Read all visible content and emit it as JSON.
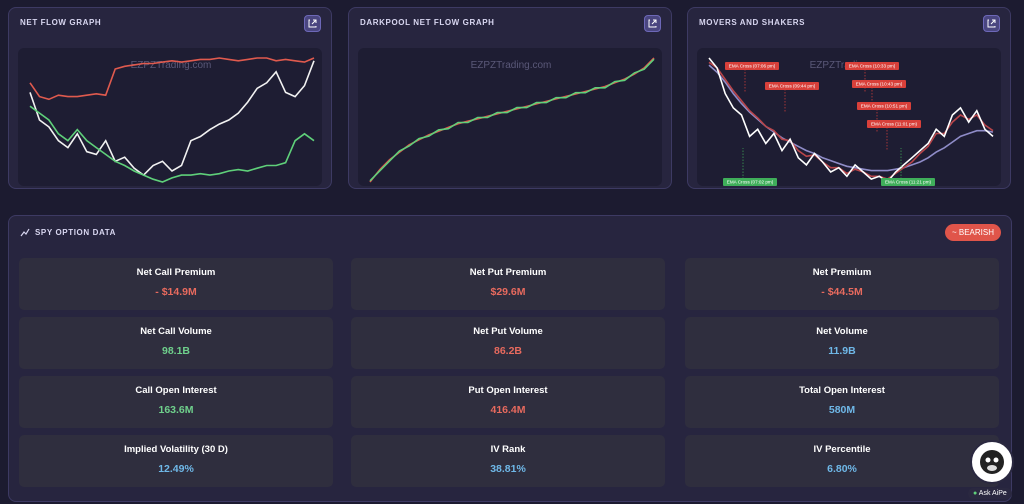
{
  "panels": [
    {
      "title": "NET FLOW GRAPH",
      "watermark": "EZPZTrading.com",
      "series": [
        {
          "color": "#e05a4e",
          "values": [
            72,
            62,
            60,
            63,
            62,
            62,
            63,
            64,
            63,
            82,
            84,
            85,
            86,
            86,
            87,
            88,
            87,
            88,
            89,
            89,
            90,
            89,
            88,
            89,
            90,
            90,
            88,
            89,
            88,
            87,
            90
          ]
        },
        {
          "color": "#f2f2f2",
          "values": [
            65,
            45,
            40,
            30,
            25,
            35,
            22,
            20,
            30,
            15,
            18,
            10,
            5,
            12,
            15,
            8,
            12,
            30,
            33,
            38,
            42,
            45,
            50,
            58,
            68,
            72,
            80,
            65,
            62,
            70,
            88
          ]
        },
        {
          "color": "#5fd07a",
          "values": [
            55,
            50,
            45,
            35,
            30,
            38,
            30,
            25,
            20,
            15,
            12,
            8,
            5,
            2,
            0,
            3,
            5,
            5,
            6,
            5,
            6,
            8,
            9,
            8,
            10,
            12,
            12,
            14,
            30,
            35,
            30
          ]
        }
      ]
    },
    {
      "title": "DARKPOOL NET FLOW GRAPH",
      "watermark": "EZPZTrading.com",
      "series": [
        {
          "color": "#e05a4e",
          "values": [
            0,
            10,
            18,
            24,
            30,
            34,
            38,
            41,
            44,
            47,
            49,
            51,
            53,
            55,
            57,
            59,
            61,
            63,
            65,
            67,
            69,
            71,
            73,
            75,
            77,
            80,
            83,
            87,
            92,
            100
          ]
        },
        {
          "color": "#5fd07a",
          "values": [
            1,
            9,
            17,
            25,
            29,
            35,
            37,
            42,
            43,
            48,
            48,
            52,
            52,
            56,
            56,
            60,
            60,
            64,
            64,
            68,
            68,
            72,
            72,
            76,
            76,
            81,
            82,
            88,
            91,
            99
          ]
        }
      ]
    },
    {
      "title": "MOVERS AND SHAKERS",
      "watermark": "EZPZTrading.com",
      "series": [
        {
          "color": "#8f8cc8",
          "values": [
            90,
            85,
            78,
            70,
            63,
            57,
            52,
            47,
            43,
            39,
            36,
            33,
            30,
            28,
            25,
            23,
            21,
            19,
            18,
            17,
            16,
            16,
            16,
            17,
            18,
            20,
            22,
            25,
            29,
            32,
            36,
            40,
            42,
            44,
            44,
            43
          ]
        },
        {
          "color": "#b8454a",
          "values": [
            92,
            88,
            80,
            72,
            65,
            58,
            53,
            47,
            44,
            38,
            37,
            30,
            26,
            27,
            22,
            18,
            18,
            14,
            17,
            15,
            12,
            12,
            10,
            14,
            18,
            22,
            28,
            33,
            42,
            42,
            50,
            55,
            52,
            55,
            48,
            44
          ]
        },
        {
          "color": "#ffffff",
          "values": [
            95,
            88,
            70,
            60,
            55,
            40,
            45,
            35,
            42,
            30,
            38,
            25,
            20,
            28,
            22,
            15,
            18,
            12,
            20,
            15,
            10,
            12,
            8,
            15,
            20,
            25,
            30,
            35,
            45,
            40,
            55,
            60,
            50,
            58,
            45,
            40
          ]
        }
      ],
      "annotations": [
        {
          "label": "EMA Cross (07:06 pm)",
          "color": "#d9403a"
        },
        {
          "label": "EMA Cross (10:33 pm)",
          "color": "#d9403a"
        },
        {
          "label": "EMA Cross (09:44 pm)",
          "color": "#d9403a"
        },
        {
          "label": "EMA Cross (10:43 pm)",
          "color": "#d9403a"
        },
        {
          "label": "EMA Cross (10:51 pm)",
          "color": "#d9403a"
        },
        {
          "label": "EMA Cross (11:01 pm)",
          "color": "#d9403a"
        },
        {
          "label": "EMA Cross (07:02 pm)",
          "color": "#3fae5a"
        },
        {
          "label": "EMA Cross (11:21 pm)",
          "color": "#3fae5a"
        }
      ]
    }
  ],
  "option_data": {
    "title": "SPY OPTION DATA",
    "badge": "~ BEARISH",
    "cards": [
      {
        "label": "Net Call Premium",
        "value": "- $14.9M",
        "color": "#e86a5e"
      },
      {
        "label": "Net Put Premium",
        "value": "$29.6M",
        "color": "#e86a5e"
      },
      {
        "label": "Net Premium",
        "value": "- $44.5M",
        "color": "#e86a5e"
      },
      {
        "label": "Net Call Volume",
        "value": "98.1B",
        "color": "#6fd08c"
      },
      {
        "label": "Net Put Volume",
        "value": "86.2B",
        "color": "#e86a5e"
      },
      {
        "label": "Net Volume",
        "value": "11.9B",
        "color": "#6fb8e8"
      },
      {
        "label": "Call Open Interest",
        "value": "163.6M",
        "color": "#6fd08c"
      },
      {
        "label": "Put Open Interest",
        "value": "416.4M",
        "color": "#e86a5e"
      },
      {
        "label": "Total Open Interest",
        "value": "580M",
        "color": "#6fb8e8"
      },
      {
        "label": "Implied Volatility (30 D)",
        "value": "12.49%",
        "color": "#6fb8e8"
      },
      {
        "label": "IV Rank",
        "value": "38.81%",
        "color": "#6fb8e8"
      },
      {
        "label": "IV Percentile",
        "value": "6.80%",
        "color": "#6fb8e8"
      }
    ]
  },
  "assistant": {
    "label": "Ask AiPe"
  }
}
